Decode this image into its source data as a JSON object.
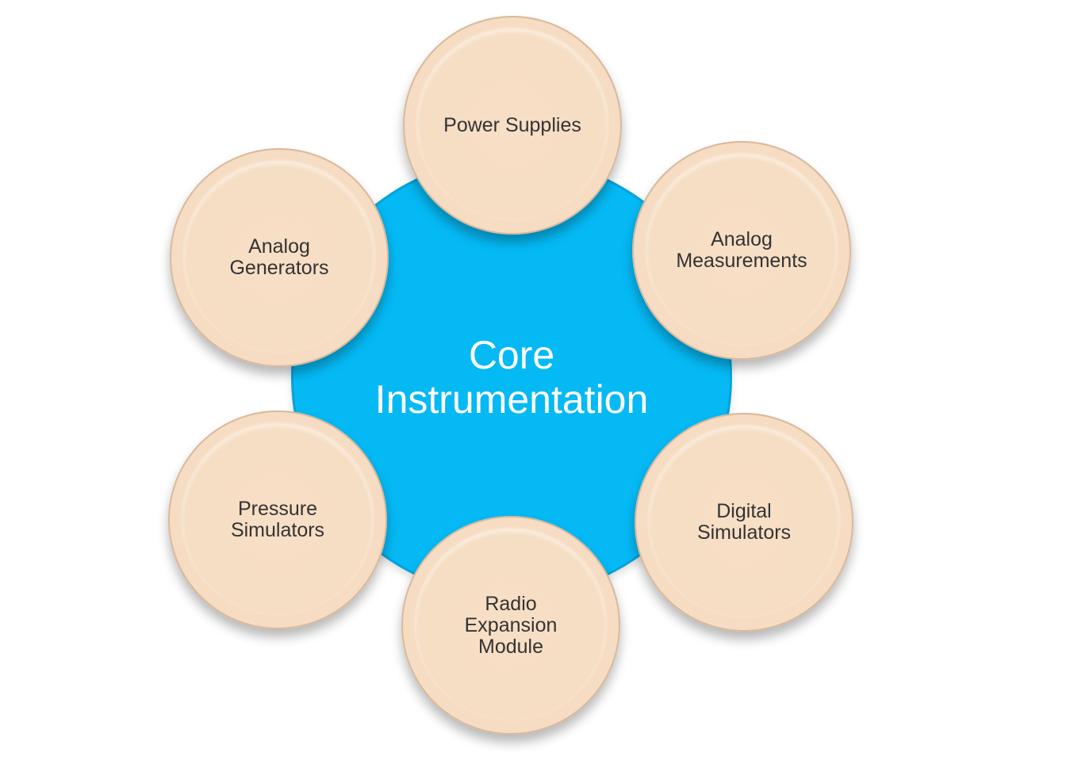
{
  "diagram": {
    "center": {
      "label": "Core\nInstrumentation",
      "color": "#05b9f4"
    },
    "nodes": [
      {
        "id": "power",
        "label": "Power Supplies"
      },
      {
        "id": "measurements",
        "label": "Analog\nMeasurements"
      },
      {
        "id": "digital",
        "label": "Digital\nSimulators"
      },
      {
        "id": "radio",
        "label": "Radio\nExpansion\nModule"
      },
      {
        "id": "pressure",
        "label": "Pressure\nSimulators"
      },
      {
        "id": "generators",
        "label": "Analog\nGenerators"
      }
    ],
    "node_color": "#f6dcc2"
  }
}
